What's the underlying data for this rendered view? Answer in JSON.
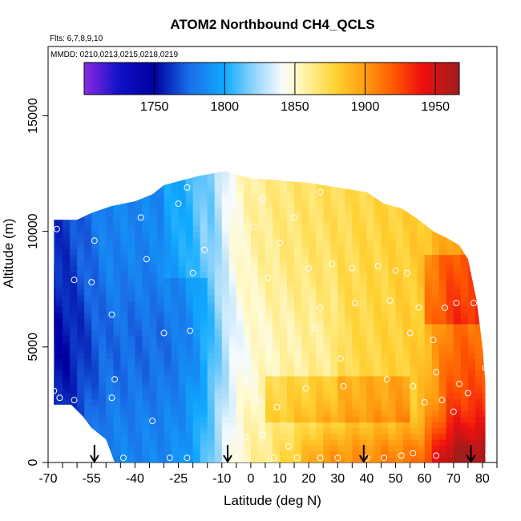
{
  "chart_data": {
    "type": "heatmap",
    "title": "ATOM2 Northbound CH4_QCLS",
    "flights_label": "Flts: 6,7,8,9,10",
    "mmdd_label": "MMDD: 0210,0213,0215,0218,0219",
    "xlabel": "Latitude (deg N)",
    "ylabel": "Altitude (m)",
    "xlim": [
      -70,
      85
    ],
    "ylim": [
      0,
      18000
    ],
    "x_ticks": [
      -70,
      -55,
      -40,
      -25,
      -10,
      0,
      10,
      20,
      30,
      40,
      50,
      60,
      70,
      80
    ],
    "x_minor_ticks": [
      -65,
      -60,
      -50,
      -45,
      -35,
      -30,
      -20,
      -15,
      -5,
      5,
      15,
      25,
      35,
      45,
      55,
      65,
      75,
      85
    ],
    "y_ticks": [
      0,
      5000,
      10000,
      15000
    ],
    "colorbar": {
      "min": 1700,
      "max": 1967,
      "ticks": [
        1750,
        1800,
        1850,
        1900,
        1950
      ],
      "stops": [
        {
          "value": 1700,
          "color": "#8a2be2"
        },
        {
          "value": 1725,
          "color": "#1010c8"
        },
        {
          "value": 1750,
          "color": "#0000a0"
        },
        {
          "value": 1775,
          "color": "#1a6fe8"
        },
        {
          "value": 1800,
          "color": "#10aaff"
        },
        {
          "value": 1825,
          "color": "#a8dcfa"
        },
        {
          "value": 1840,
          "color": "#f4faff"
        },
        {
          "value": 1850,
          "color": "#fffad0"
        },
        {
          "value": 1865,
          "color": "#ffe878"
        },
        {
          "value": 1880,
          "color": "#ffd030"
        },
        {
          "value": 1900,
          "color": "#ff9c10"
        },
        {
          "value": 1920,
          "color": "#ff5a00"
        },
        {
          "value": 1940,
          "color": "#f01010"
        },
        {
          "value": 1967,
          "color": "#9e1c1c"
        }
      ]
    },
    "profile_markers_lat": [
      -54,
      -8,
      39,
      76
    ],
    "envelope": [
      {
        "lat": -68,
        "top": 10500
      },
      {
        "lat": -60,
        "top": 10500
      },
      {
        "lat": -55,
        "top": 10800
      },
      {
        "lat": -48,
        "top": 11100
      },
      {
        "lat": -40,
        "top": 11300
      },
      {
        "lat": -34,
        "top": 11600
      },
      {
        "lat": -30,
        "top": 12000
      },
      {
        "lat": -24,
        "top": 12200
      },
      {
        "lat": -18,
        "top": 12400
      },
      {
        "lat": -9,
        "top": 12600
      },
      {
        "lat": 0,
        "top": 12300
      },
      {
        "lat": 10,
        "top": 12200
      },
      {
        "lat": 20,
        "top": 12100
      },
      {
        "lat": 30,
        "top": 11900
      },
      {
        "lat": 40,
        "top": 11700
      },
      {
        "lat": 46,
        "top": 11200
      },
      {
        "lat": 52,
        "top": 11000
      },
      {
        "lat": 58,
        "top": 10500
      },
      {
        "lat": 63,
        "top": 10000
      },
      {
        "lat": 68,
        "top": 9700
      },
      {
        "lat": 72,
        "top": 9400
      },
      {
        "lat": 75,
        "top": 8800
      },
      {
        "lat": 78,
        "top": 7000
      },
      {
        "lat": 80,
        "top": 5000
      },
      {
        "lat": 81,
        "top": 3500
      },
      {
        "lat": 81,
        "top": 0
      }
    ],
    "bottom_envelope": [
      {
        "lat": -68,
        "bottom": 2500
      },
      {
        "lat": -62,
        "bottom": 2500
      },
      {
        "lat": -58,
        "bottom": 2000
      },
      {
        "lat": -55,
        "bottom": 1500
      },
      {
        "lat": -50,
        "bottom": 1000
      },
      {
        "lat": -47,
        "bottom": 0
      }
    ],
    "sample_points": [
      [
        -67,
        10100
      ],
      [
        -61,
        7900
      ],
      [
        -54,
        9600
      ],
      [
        -55,
        7800
      ],
      [
        -48,
        6400
      ],
      [
        -38,
        10600
      ],
      [
        -36,
        8800
      ],
      [
        -30,
        5600
      ],
      [
        -25,
        11200
      ],
      [
        -22,
        11900
      ],
      [
        -20,
        8200
      ],
      [
        -21,
        5700
      ],
      [
        -16,
        9200
      ],
      [
        -6,
        11700
      ],
      [
        1,
        10200
      ],
      [
        4,
        11400
      ],
      [
        6,
        8000
      ],
      [
        10,
        9500
      ],
      [
        15,
        10600
      ],
      [
        24,
        11700
      ],
      [
        20,
        8400
      ],
      [
        28,
        8600
      ],
      [
        35,
        8400
      ],
      [
        22,
        5800
      ],
      [
        31,
        4500
      ],
      [
        24,
        6700
      ],
      [
        36,
        6900
      ],
      [
        48,
        7000
      ],
      [
        44,
        8500
      ],
      [
        50,
        8300
      ],
      [
        54,
        8200
      ],
      [
        55,
        5600
      ],
      [
        63,
        5300
      ],
      [
        64,
        3900
      ],
      [
        67,
        6700
      ],
      [
        71,
        6900
      ],
      [
        -68,
        3100
      ],
      [
        -66,
        2800
      ],
      [
        -61,
        2700
      ],
      [
        -47,
        3600
      ],
      [
        -48,
        2800
      ],
      [
        -34,
        1800
      ],
      [
        -3,
        4300
      ],
      [
        -2,
        3500
      ],
      [
        2,
        3700
      ],
      [
        3,
        2700
      ],
      [
        -2,
        1100
      ],
      [
        4,
        1200
      ],
      [
        9,
        2400
      ],
      [
        19,
        3200
      ],
      [
        13,
        700
      ],
      [
        8,
        200
      ],
      [
        16,
        200
      ],
      [
        24,
        200
      ],
      [
        30,
        200
      ],
      [
        40,
        200
      ],
      [
        46,
        200
      ],
      [
        52,
        300
      ],
      [
        56,
        400
      ],
      [
        64,
        300
      ],
      [
        47,
        3600
      ],
      [
        56,
        3300
      ],
      [
        60,
        2600
      ],
      [
        66,
        2700
      ],
      [
        70,
        2200
      ],
      [
        75,
        3000
      ],
      [
        72,
        3400
      ],
      [
        81,
        4100
      ],
      [
        82,
        300
      ],
      [
        -44,
        200
      ],
      [
        -28,
        200
      ],
      [
        -22,
        200
      ],
      [
        -6,
        200
      ],
      [
        32,
        3300
      ],
      [
        58,
        6700
      ],
      [
        77,
        6900
      ]
    ]
  }
}
